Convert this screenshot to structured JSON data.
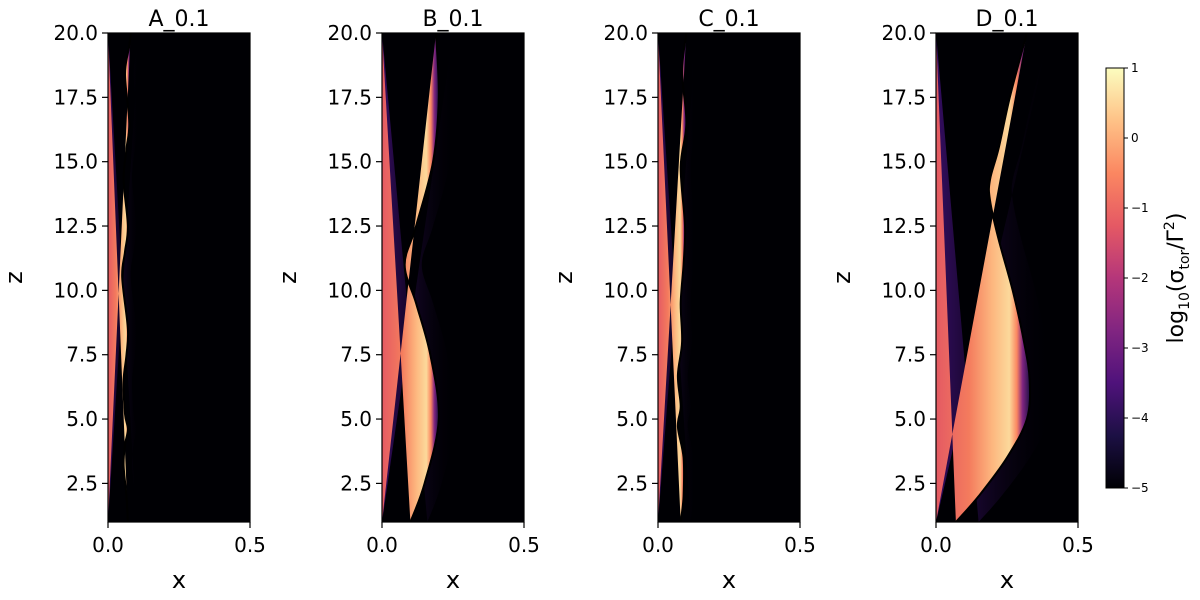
{
  "chart_data": [
    {
      "type": "heatmap",
      "title": "A_0.1",
      "xlabel": "x",
      "ylabel": "z",
      "xlim": [
        0.0,
        0.5
      ],
      "ylim": [
        1.0,
        20.0
      ],
      "xticks": [
        "0.0",
        "0.5"
      ],
      "yticks": [
        "2.5",
        "5.0",
        "7.5",
        "10.0",
        "12.5",
        "15.0",
        "17.5",
        "20.0"
      ],
      "contour": {
        "z": [
          1,
          2,
          3.2,
          4,
          4.6,
          5.2,
          6.5,
          7.5,
          8.5,
          10.5,
          11.5,
          12.5,
          14.3,
          15.5,
          16.5,
          18.4,
          19.5,
          20
        ],
        "x": [
          0.07,
          0.065,
          0.055,
          0.06,
          0.07,
          0.06,
          0.055,
          0.065,
          0.07,
          0.05,
          0.06,
          0.07,
          0.055,
          0.065,
          0.075,
          0.06,
          0.075,
          0.08
        ]
      },
      "edge_offset": 0.03
    },
    {
      "type": "heatmap",
      "title": "B_0.1",
      "xlabel": "x",
      "ylabel": "z",
      "xlim": [
        0.0,
        0.5
      ],
      "ylim": [
        1.0,
        20.0
      ],
      "xticks": [
        "0.0",
        "0.5"
      ],
      "yticks": [
        "2.5",
        "5.0",
        "7.5",
        "10.0",
        "12.5",
        "15.0",
        "17.5",
        "20.0"
      ],
      "contour": {
        "z": [
          1,
          2.5,
          5,
          7.5,
          9.5,
          11,
          12.5,
          15,
          17.5,
          20
        ],
        "x": [
          0.1,
          0.15,
          0.2,
          0.17,
          0.12,
          0.08,
          0.12,
          0.18,
          0.2,
          0.19
        ]
      },
      "edge_offset": 0.06
    },
    {
      "type": "heatmap",
      "title": "C_0.1",
      "xlabel": "x",
      "ylabel": "z",
      "xlim": [
        0.0,
        0.5
      ],
      "ylim": [
        1.0,
        20.0
      ],
      "xticks": [
        "0.0",
        "0.5"
      ],
      "yticks": [
        "2.5",
        "5.0",
        "7.5",
        "10.0",
        "12.5",
        "15.0",
        "17.5",
        "20.0"
      ],
      "contour": {
        "z": [
          1,
          2,
          3.5,
          4.7,
          5.5,
          6.7,
          8,
          9.5,
          11,
          12.5,
          14.8,
          16.5,
          18.5,
          20
        ],
        "x": [
          0.08,
          0.09,
          0.09,
          0.07,
          0.08,
          0.07,
          0.085,
          0.08,
          0.09,
          0.095,
          0.08,
          0.1,
          0.085,
          0.1
        ]
      },
      "edge_offset": 0.035
    },
    {
      "type": "heatmap",
      "title": "D_0.1",
      "xlabel": "x",
      "ylabel": "z",
      "xlim": [
        0.0,
        0.5
      ],
      "ylim": [
        1.0,
        20.0
      ],
      "xticks": [
        "0.0",
        "0.5"
      ],
      "yticks": [
        "2.5",
        "5.0",
        "7.5",
        "10.0",
        "12.5",
        "15.0",
        "17.5",
        "20.0"
      ],
      "contour": {
        "z": [
          1,
          2,
          3.5,
          5,
          6.5,
          8,
          10,
          12,
          13.5,
          14.3,
          15.5,
          17.5,
          20
        ],
        "x": [
          0.07,
          0.15,
          0.25,
          0.32,
          0.33,
          0.31,
          0.27,
          0.22,
          0.19,
          0.19,
          0.22,
          0.26,
          0.32
        ]
      },
      "edge_offset": 0.08
    }
  ],
  "colorbar": {
    "label": "log₁₀(σ_tor/Γ²)",
    "label_parts": {
      "prefix": "log",
      "sub": "10",
      "open": "(σ",
      "sub2": "tor",
      "slash": "/Γ",
      "sup": "2",
      "close": ")"
    },
    "range": [
      -5,
      1
    ],
    "ticks": [
      "1",
      "0",
      "−1",
      "−2",
      "−3",
      "−4",
      "−5"
    ],
    "colors": [
      "#000004",
      "#1c1044",
      "#4f127b",
      "#812581",
      "#b5367a",
      "#e55964",
      "#fb8761",
      "#fec287",
      "#fcfdbf"
    ]
  }
}
